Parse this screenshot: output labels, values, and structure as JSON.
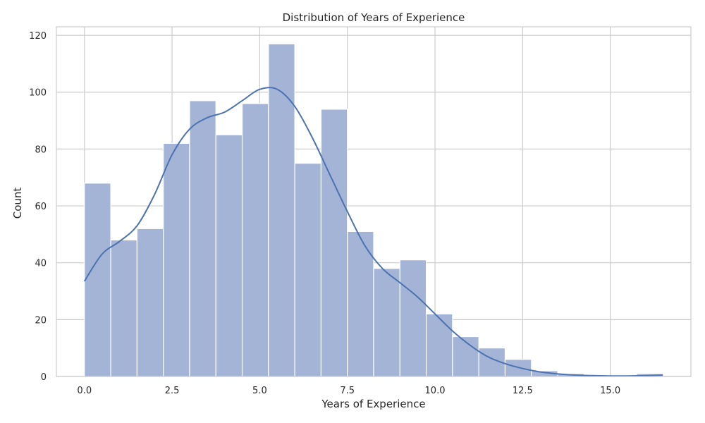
{
  "chart_data": {
    "type": "bar",
    "title": "Distribution of Years of Experience",
    "xlabel": "Years of Experience",
    "ylabel": "Count",
    "xlim": [
      -0.8,
      17.3
    ],
    "ylim": [
      0,
      123
    ],
    "x_ticks": [
      0.0,
      2.5,
      5.0,
      7.5,
      10.0,
      12.5,
      15.0
    ],
    "x_tick_labels": [
      "0.0",
      "2.5",
      "5.0",
      "7.5",
      "10.0",
      "12.5",
      "15.0"
    ],
    "y_ticks": [
      0,
      20,
      40,
      60,
      80,
      100,
      120
    ],
    "y_tick_labels": [
      "0",
      "20",
      "40",
      "60",
      "80",
      "100",
      "120"
    ],
    "grid": true,
    "bin_edges": [
      0.0,
      0.75,
      1.5,
      2.25,
      3.0,
      3.75,
      4.5,
      5.25,
      6.0,
      6.75,
      7.5,
      8.25,
      9.0,
      9.75,
      10.5,
      11.25,
      12.0,
      12.75,
      13.5,
      14.25,
      15.0,
      15.75,
      16.5
    ],
    "counts": [
      68,
      48,
      52,
      82,
      97,
      85,
      96,
      117,
      75,
      94,
      51,
      38,
      41,
      22,
      14,
      10,
      6,
      2,
      1,
      0,
      0,
      1
    ],
    "kde": {
      "x": [
        0.0,
        0.5,
        1.0,
        1.5,
        2.0,
        2.5,
        3.0,
        3.5,
        4.0,
        4.5,
        5.0,
        5.5,
        6.0,
        6.5,
        7.0,
        7.5,
        8.0,
        8.5,
        9.0,
        9.5,
        10.0,
        10.5,
        11.0,
        11.5,
        12.0,
        12.5,
        13.0,
        13.5,
        14.0,
        14.5,
        15.0,
        15.5,
        16.0,
        16.5
      ],
      "y": [
        33.5,
        43,
        47.5,
        53,
        64,
        78,
        87,
        91,
        93,
        97,
        101,
        101,
        95,
        84,
        71,
        58,
        46,
        38,
        33,
        28,
        22,
        16,
        11,
        7,
        4.5,
        2.8,
        1.6,
        0.9,
        0.5,
        0.3,
        0.2,
        0.2,
        0.3,
        0.5
      ]
    },
    "colors": {
      "bar_fill": "#a3b4d6",
      "bar_stroke": "#ffffff",
      "kde_line": "#4c72b0",
      "grid": "#cccccc",
      "frame": "#cccccc",
      "text": "#262626"
    }
  }
}
